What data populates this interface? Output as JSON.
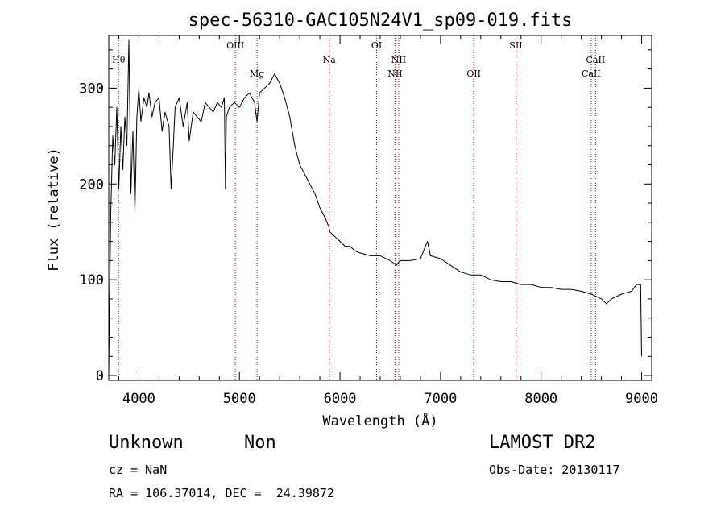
{
  "chart_data": {
    "type": "line",
    "title": "spec-56310-GAC105N24V1_sp09-019.fits",
    "xlabel": "Wavelength (Å)",
    "ylabel": "Flux (relative)",
    "xlim": [
      3700,
      9100
    ],
    "ylim": [
      -5,
      355
    ],
    "xticks": [
      4000,
      5000,
      6000,
      7000,
      8000,
      9000
    ],
    "yticks": [
      0,
      100,
      200,
      300
    ],
    "grid": false,
    "series": [
      {
        "x": [
          3700,
          3720,
          3740,
          3760,
          3780,
          3800,
          3820,
          3840,
          3860,
          3880,
          3900,
          3920,
          3940,
          3960,
          3980,
          4000,
          4020,
          4050,
          4080,
          4100,
          4130,
          4160,
          4200,
          4230,
          4260,
          4300,
          4320,
          4340,
          4360,
          4400,
          4440,
          4480,
          4500,
          4540,
          4580,
          4620,
          4660,
          4700,
          4740,
          4780,
          4820,
          4850,
          4861,
          4870,
          4900,
          4950,
          5000,
          5050,
          5100,
          5150,
          5175,
          5200,
          5250,
          5300,
          5350,
          5400,
          5450,
          5500,
          5550,
          5600,
          5650,
          5700,
          5750,
          5800,
          5850,
          5890,
          5900,
          5950,
          6000,
          6050,
          6100,
          6150,
          6200,
          6300,
          6400,
          6500,
          6560,
          6580,
          6600,
          6700,
          6800,
          6870,
          6900,
          7000,
          7100,
          7200,
          7300,
          7400,
          7500,
          7600,
          7700,
          7800,
          7900,
          8000,
          8100,
          8200,
          8300,
          8400,
          8500,
          8600,
          8650,
          8700,
          8800,
          8900,
          8950,
          8990,
          9000
        ],
        "y": [
          5,
          170,
          250,
          220,
          280,
          195,
          260,
          215,
          270,
          240,
          350,
          190,
          255,
          170,
          270,
          300,
          265,
          290,
          280,
          295,
          270,
          285,
          290,
          255,
          275,
          260,
          195,
          235,
          280,
          290,
          260,
          285,
          245,
          275,
          270,
          265,
          285,
          280,
          275,
          285,
          280,
          290,
          195,
          270,
          280,
          285,
          280,
          290,
          295,
          285,
          265,
          295,
          300,
          305,
          315,
          305,
          290,
          270,
          240,
          220,
          210,
          200,
          190,
          175,
          165,
          155,
          150,
          145,
          140,
          135,
          135,
          130,
          128,
          125,
          125,
          120,
          115,
          118,
          120,
          120,
          122,
          140,
          125,
          122,
          115,
          108,
          105,
          105,
          100,
          98,
          98,
          95,
          95,
          92,
          92,
          90,
          90,
          88,
          85,
          80,
          75,
          80,
          85,
          88,
          95,
          95,
          20
        ]
      }
    ],
    "annotations": [
      {
        "label": "Hθ",
        "x": 3798,
        "row": 1
      },
      {
        "label": "OIII",
        "x": 4959,
        "row": 0
      },
      {
        "label": "Mg",
        "x": 5175,
        "row": 2
      },
      {
        "label": "Na",
        "x": 5893,
        "row": 1
      },
      {
        "label": "OI",
        "x": 6364,
        "row": 0
      },
      {
        "label": "NII",
        "x": 6548,
        "row": 2
      },
      {
        "label": "NII",
        "x": 6584,
        "row": 1
      },
      {
        "label": "OII",
        "x": 7330,
        "row": 2
      },
      {
        "label": "SII",
        "x": 7750,
        "row": 0
      },
      {
        "label": "CaII",
        "x": 8498,
        "row": 2
      },
      {
        "label": "CaII",
        "x": 8542,
        "row": 1
      }
    ]
  },
  "info": {
    "object_class": "Unknown",
    "object_subclass": "Non",
    "survey": "LAMOST DR2",
    "cz": "cz = NaN",
    "obs_date": "Obs-Date: 20130117",
    "coords": "RA = 106.37014, DEC =  24.39872"
  },
  "colors": {
    "line": "#000000",
    "marker": "#cc0000"
  }
}
